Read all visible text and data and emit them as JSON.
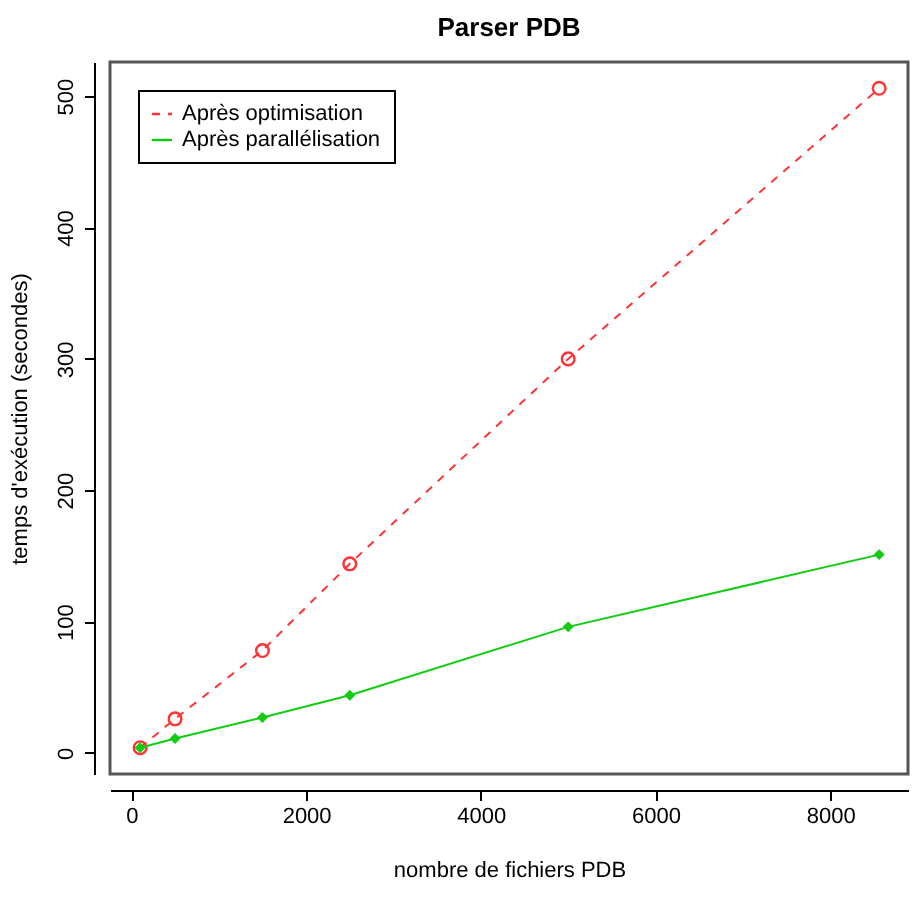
{
  "chart_data": {
    "type": "line",
    "title": "Parser PDB",
    "xlabel": "nombre de fichiers PDB",
    "ylabel": "temps d'exécution (secondes)",
    "x": [
      100,
      500,
      1500,
      2500,
      5000,
      8560
    ],
    "series": [
      {
        "name": "Après optimisation",
        "color": "#ff3333",
        "marker": "circle",
        "line_style": "dashed",
        "values": [
          4,
          26,
          78,
          144,
          300,
          506
        ]
      },
      {
        "name": "Après parallélisation",
        "color": "#11cc11",
        "marker": "diamond",
        "line_style": "solid",
        "values": [
          4,
          11,
          27,
          44,
          96,
          151
        ]
      }
    ],
    "xlim": [
      -245,
      8890
    ],
    "ylim": [
      -16,
      526
    ],
    "xticks": [
      0,
      2000,
      4000,
      6000,
      8000
    ],
    "yticks": [
      0,
      100,
      200,
      300,
      400,
      500
    ],
    "grid": false,
    "legend": "top left"
  }
}
